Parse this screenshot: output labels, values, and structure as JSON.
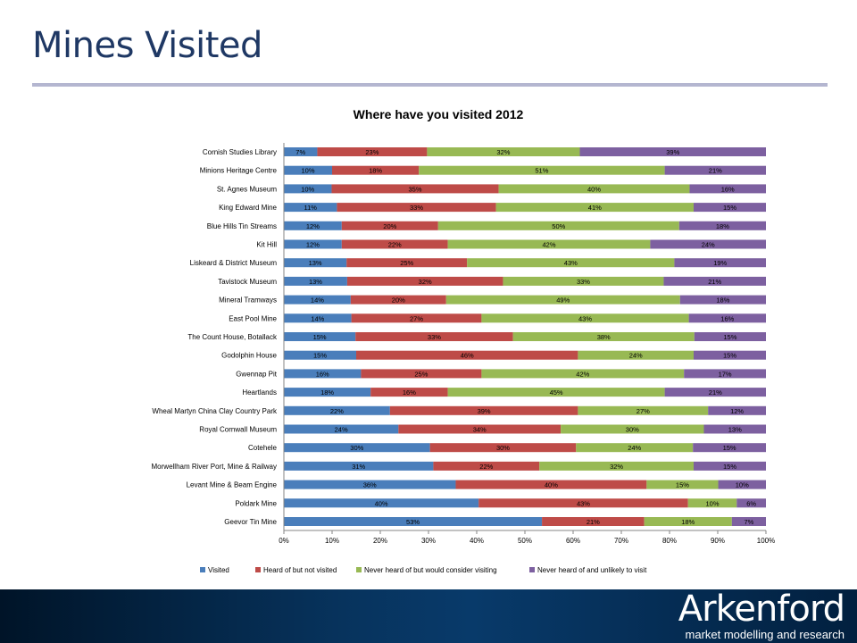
{
  "slide": {
    "title": "Mines Visited"
  },
  "brand": {
    "logo_text": "Arkenford",
    "tagline": "market modelling and research"
  },
  "colors": {
    "title": "#1f3864",
    "footer": "#062d55",
    "series": [
      "#4a7ebb",
      "#be4b48",
      "#98b954",
      "#7d60a0"
    ]
  },
  "chart_data": {
    "type": "bar",
    "orientation": "horizontal",
    "stacked": "percent",
    "title": "Where have you visited 2012",
    "xlim": [
      0,
      100
    ],
    "xticks": [
      "0%",
      "10%",
      "20%",
      "30%",
      "40%",
      "50%",
      "60%",
      "70%",
      "80%",
      "90%",
      "100%"
    ],
    "grid": false,
    "legend_position": "bottom",
    "categories": [
      "Cornish Studies Library",
      "Minions Heritage Centre",
      "St. Agnes Museum",
      "King Edward Mine",
      "Blue Hills Tin Streams",
      "Kit Hill",
      "Liskeard & District Museum",
      "Tavistock Museum",
      "Mineral Tramways",
      "East Pool Mine",
      "The Count House, Botallack",
      "Godolphin House",
      "Gwennap Pit",
      "Heartlands",
      "Wheal Martyn China Clay Country Park",
      "Royal Cornwall Museum",
      "Cotehele",
      "Morwellham River Port, Mine & Railway",
      "Levant Mine & Beam Engine",
      "Poldark Mine",
      "Geevor Tin Mine"
    ],
    "series": [
      {
        "name": "Visited",
        "values": [
          7,
          10,
          10,
          11,
          12,
          12,
          13,
          13,
          14,
          14,
          15,
          15,
          16,
          18,
          22,
          24,
          30,
          31,
          36,
          40,
          53
        ]
      },
      {
        "name": "Heard of but not visited",
        "values": [
          23,
          18,
          35,
          33,
          20,
          22,
          25,
          32,
          20,
          27,
          33,
          46,
          25,
          16,
          39,
          34,
          30,
          22,
          40,
          43,
          21
        ]
      },
      {
        "name": "Never heard of but would consider visiting",
        "values": [
          32,
          51,
          40,
          41,
          50,
          42,
          43,
          33,
          49,
          43,
          38,
          24,
          42,
          45,
          27,
          30,
          24,
          32,
          15,
          10,
          18
        ]
      },
      {
        "name": "Never heard of and unlikely to visit",
        "values": [
          39,
          21,
          16,
          15,
          18,
          24,
          19,
          21,
          18,
          16,
          15,
          15,
          17,
          21,
          12,
          13,
          15,
          15,
          10,
          6,
          7
        ]
      }
    ]
  }
}
